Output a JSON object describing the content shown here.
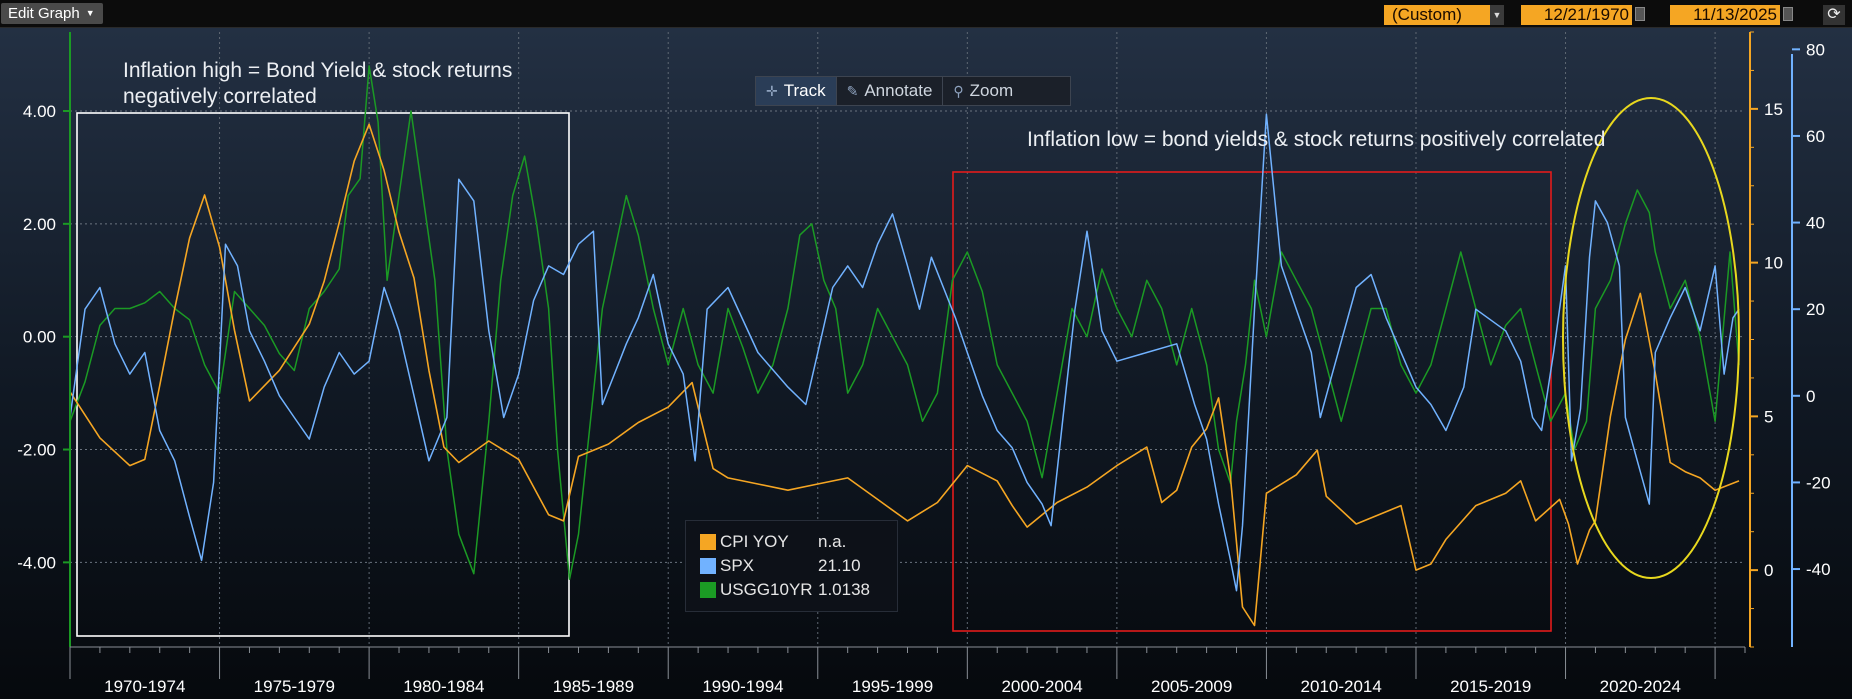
{
  "topbar": {
    "edit_graph_label": "Edit Graph",
    "period_label": "(Custom)",
    "start_date": "12/21/1970",
    "end_date": "11/13/2025"
  },
  "toolbar": {
    "track_label": "Track",
    "annotate_label": "Annotate",
    "zoom_label": "Zoom"
  },
  "annotations": {
    "high_inflation_line1": "Inflation high  = Bond Yield & stock returns",
    "high_inflation_line2": "negatively correlated",
    "low_inflation": "Inflation low = bond yields & stock returns positively correlated"
  },
  "colors": {
    "cpi": "#f5a623",
    "spx": "#71b2ff",
    "usgg": "#1b9a24",
    "box_white": "#ffffff",
    "box_red": "#e31b1b",
    "ellipse": "#e8d81e",
    "left_axis": "#1b9a24",
    "mid_axis": "#f5a623",
    "right_axis": "#71b2ff"
  },
  "chart_data": {
    "type": "line",
    "x_categories": [
      "1970-1974",
      "1975-1979",
      "1980-1984",
      "1985-1989",
      "1990-1994",
      "1995-1999",
      "2000-2004",
      "2005-2009",
      "2010-2014",
      "2015-2019",
      "2020-2024"
    ],
    "xlim": [
      1970.0,
      2026.0
    ],
    "axes": {
      "left": {
        "series": "USGG10YR",
        "ticks": [
          4,
          2,
          0,
          -2,
          -4
        ],
        "tick_labels": [
          "4.00",
          "2.00",
          "0.00",
          "-2.00",
          "-4.00"
        ],
        "ylim": [
          -5.5,
          5.4
        ]
      },
      "mid": {
        "series": "CPI YOY",
        "ticks": [
          15,
          10,
          5,
          0
        ],
        "tick_labels": [
          "15",
          "10",
          "5",
          "0"
        ],
        "ylim": [
          -2.5,
          17.5
        ]
      },
      "right": {
        "series": "SPX",
        "ticks": [
          80,
          60,
          40,
          20,
          0,
          -20,
          -40
        ],
        "tick_labels": [
          "80",
          "60",
          "40",
          "20",
          "0",
          "-20",
          "-40"
        ],
        "ylim": [
          -58,
          84
        ]
      }
    },
    "series": [
      {
        "name": "CPI YOY",
        "legend_value": "n.a.",
        "axis": "mid",
        "x": [
          1970.0,
          1971.0,
          1972.0,
          1972.5,
          1973.0,
          1973.5,
          1974.0,
          1974.5,
          1975.0,
          1975.5,
          1976.0,
          1977.0,
          1978.0,
          1978.5,
          1979.0,
          1979.5,
          1980.0,
          1980.5,
          1981.0,
          1981.5,
          1982.0,
          1982.5,
          1983.0,
          1984.0,
          1985.0,
          1986.0,
          1986.5,
          1987.0,
          1988.0,
          1989.0,
          1990.0,
          1990.8,
          1991.5,
          1992.0,
          1993.0,
          1994.0,
          1995.0,
          1996.0,
          1997.0,
          1998.0,
          1999.0,
          2000.0,
          2001.0,
          2001.5,
          2002.0,
          2003.0,
          2004.0,
          2005.0,
          2006.0,
          2006.5,
          2007.0,
          2007.5,
          2008.0,
          2008.4,
          2008.8,
          2009.2,
          2009.6,
          2010.0,
          2011.0,
          2011.7,
          2012.0,
          2013.0,
          2014.0,
          2014.5,
          2015.0,
          2015.5,
          2016.0,
          2017.0,
          2018.0,
          2018.5,
          2019.0,
          2019.8,
          2020.1,
          2020.4,
          2020.8,
          2021.0,
          2021.5,
          2022.0,
          2022.5,
          2023.0,
          2023.5,
          2024.0,
          2024.5,
          2025.0,
          2025.8
        ],
        "y": [
          5.8,
          4.3,
          3.4,
          3.6,
          6.0,
          8.5,
          10.8,
          12.2,
          10.5,
          7.8,
          5.5,
          6.5,
          8.0,
          9.4,
          11.3,
          13.3,
          14.5,
          13.0,
          11.0,
          9.5,
          6.5,
          4.0,
          3.5,
          4.2,
          3.6,
          1.8,
          1.6,
          3.7,
          4.1,
          4.8,
          5.3,
          6.1,
          3.3,
          3.0,
          2.8,
          2.6,
          2.8,
          3.0,
          2.3,
          1.6,
          2.2,
          3.4,
          2.9,
          2.1,
          1.4,
          2.2,
          2.7,
          3.4,
          4.0,
          2.2,
          2.6,
          4.0,
          4.6,
          5.6,
          3.0,
          -1.2,
          -1.8,
          2.5,
          3.1,
          3.9,
          2.4,
          1.5,
          1.9,
          2.1,
          0.0,
          0.2,
          1.0,
          2.1,
          2.5,
          2.9,
          1.6,
          2.3,
          1.5,
          0.2,
          1.3,
          1.6,
          5.0,
          7.5,
          9.0,
          6.4,
          3.5,
          3.2,
          3.0,
          2.6,
          2.9
        ]
      },
      {
        "name": "SPX",
        "legend_value": "21.10",
        "axis": "right",
        "x": [
          1970.0,
          1970.5,
          1971.0,
          1971.5,
          1972.0,
          1972.5,
          1973.0,
          1973.5,
          1974.0,
          1974.4,
          1974.8,
          1975.2,
          1975.6,
          1976.0,
          1976.5,
          1977.0,
          1977.5,
          1978.0,
          1978.5,
          1979.0,
          1979.5,
          1980.0,
          1980.5,
          1981.0,
          1981.5,
          1982.0,
          1982.6,
          1983.0,
          1983.5,
          1984.0,
          1984.5,
          1985.0,
          1985.5,
          1986.0,
          1986.5,
          1987.0,
          1987.5,
          1987.8,
          1988.2,
          1988.6,
          1989.0,
          1989.5,
          1990.0,
          1990.5,
          1990.9,
          1991.3,
          1992.0,
          1993.0,
          1994.0,
          1994.6,
          1995.0,
          1995.5,
          1996.0,
          1996.5,
          1997.0,
          1997.5,
          1998.0,
          1998.4,
          1998.8,
          1999.2,
          1999.6,
          2000.0,
          2000.5,
          2001.0,
          2001.5,
          2002.0,
          2002.5,
          2002.8,
          2003.2,
          2003.6,
          2004.0,
          2004.5,
          2005.0,
          2006.0,
          2007.0,
          2007.6,
          2008.0,
          2008.4,
          2008.8,
          2009.0,
          2009.2,
          2009.6,
          2010.0,
          2010.5,
          2011.0,
          2011.5,
          2011.8,
          2012.2,
          2013.0,
          2013.5,
          2014.0,
          2015.0,
          2015.5,
          2016.0,
          2016.6,
          2017.0,
          2018.0,
          2018.5,
          2018.9,
          2019.2,
          2019.6,
          2020.0,
          2020.2,
          2020.5,
          2020.8,
          2021.0,
          2021.4,
          2021.8,
          2022.0,
          2022.4,
          2022.8,
          2023.0,
          2023.5,
          2024.0,
          2024.5,
          2025.0,
          2025.3,
          2025.6,
          2025.8
        ],
        "y": [
          -5,
          20,
          25,
          12,
          5,
          10,
          -8,
          -15,
          -28,
          -38,
          -20,
          35,
          30,
          15,
          8,
          0,
          -5,
          -10,
          2,
          10,
          5,
          8,
          25,
          15,
          0,
          -15,
          -5,
          50,
          45,
          15,
          -5,
          5,
          22,
          30,
          28,
          35,
          38,
          -2,
          5,
          12,
          18,
          28,
          12,
          5,
          -15,
          20,
          25,
          10,
          2,
          -2,
          10,
          25,
          30,
          25,
          35,
          42,
          30,
          20,
          32,
          25,
          18,
          10,
          0,
          -8,
          -12,
          -20,
          -25,
          -30,
          -5,
          20,
          38,
          15,
          8,
          10,
          12,
          -2,
          -10,
          -25,
          -38,
          -45,
          -30,
          20,
          65,
          30,
          20,
          10,
          -5,
          5,
          25,
          28,
          18,
          2,
          -2,
          -8,
          2,
          20,
          15,
          8,
          -5,
          -8,
          10,
          30,
          -15,
          -3,
          32,
          45,
          40,
          30,
          -5,
          -15,
          -25,
          10,
          18,
          25,
          15,
          30,
          5,
          18,
          20
        ]
      },
      {
        "name": "USGG10YR",
        "legend_value": "1.0138",
        "axis": "left",
        "x": [
          1970.0,
          1970.5,
          1971.0,
          1971.5,
          1972.0,
          1972.5,
          1973.0,
          1973.5,
          1974.0,
          1974.5,
          1975.0,
          1975.5,
          1976.0,
          1976.5,
          1977.0,
          1977.5,
          1978.0,
          1978.5,
          1979.0,
          1979.3,
          1979.7,
          1980.0,
          1980.3,
          1980.6,
          1981.0,
          1981.4,
          1981.8,
          1982.2,
          1982.6,
          1983.0,
          1983.5,
          1984.0,
          1984.4,
          1984.8,
          1985.2,
          1985.6,
          1986.0,
          1986.3,
          1986.7,
          1987.0,
          1987.4,
          1987.8,
          1988.2,
          1988.6,
          1989.0,
          1989.5,
          1990.0,
          1990.5,
          1991.0,
          1991.5,
          1992.0,
          1992.5,
          1993.0,
          1993.5,
          1994.0,
          1994.4,
          1994.8,
          1995.2,
          1995.6,
          1996.0,
          1996.5,
          1997.0,
          1997.5,
          1998.0,
          1998.5,
          1999.0,
          1999.5,
          2000.0,
          2000.5,
          2001.0,
          2001.5,
          2002.0,
          2002.5,
          2003.0,
          2003.5,
          2004.0,
          2004.5,
          2005.0,
          2005.5,
          2006.0,
          2006.5,
          2007.0,
          2007.5,
          2008.0,
          2008.4,
          2008.8,
          2009.0,
          2009.3,
          2009.6,
          2010.0,
          2010.5,
          2011.0,
          2011.5,
          2012.0,
          2012.5,
          2013.0,
          2013.5,
          2014.0,
          2014.5,
          2015.0,
          2015.5,
          2016.0,
          2016.5,
          2017.0,
          2017.5,
          2018.0,
          2018.5,
          2019.0,
          2019.5,
          2020.0,
          2020.3,
          2020.7,
          2021.0,
          2021.5,
          2022.0,
          2022.4,
          2022.8,
          2023.0,
          2023.5,
          2024.0,
          2024.5,
          2025.0,
          2025.5,
          2025.8
        ],
        "y": [
          -1.5,
          -0.8,
          0.2,
          0.5,
          0.5,
          0.6,
          0.8,
          0.5,
          0.3,
          -0.5,
          -1.0,
          0.8,
          0.5,
          0.2,
          -0.3,
          -0.6,
          0.5,
          0.8,
          1.2,
          2.5,
          2.8,
          4.8,
          3.8,
          1.0,
          2.5,
          4.0,
          2.5,
          1.0,
          -2.0,
          -3.5,
          -4.2,
          -1.5,
          1.0,
          2.5,
          3.2,
          2.0,
          0.5,
          -2.0,
          -4.3,
          -3.5,
          -1.5,
          0.5,
          1.5,
          2.5,
          1.8,
          0.5,
          -0.5,
          0.5,
          -0.5,
          -1.0,
          0.5,
          -0.2,
          -1.0,
          -0.5,
          0.5,
          1.8,
          2.0,
          1.0,
          0.5,
          -1.0,
          -0.5,
          0.5,
          0.0,
          -0.5,
          -1.5,
          -1.0,
          1.0,
          1.5,
          0.8,
          -0.5,
          -1.0,
          -1.5,
          -2.5,
          -1.0,
          0.5,
          0.0,
          1.2,
          0.5,
          0.0,
          1.0,
          0.5,
          -0.5,
          0.5,
          -0.5,
          -2.0,
          -2.6,
          -1.5,
          -0.5,
          1.0,
          0.0,
          1.5,
          1.0,
          0.5,
          -0.5,
          -1.5,
          -0.5,
          0.5,
          0.5,
          -0.5,
          -1.0,
          -0.5,
          0.5,
          1.5,
          0.5,
          -0.5,
          0.2,
          0.5,
          -0.5,
          -1.5,
          -1.0,
          -2.0,
          -1.5,
          0.5,
          1.0,
          2.0,
          2.6,
          2.2,
          1.5,
          0.5,
          1.0,
          0.0,
          -1.5,
          1.5,
          -0.5
        ]
      }
    ]
  }
}
